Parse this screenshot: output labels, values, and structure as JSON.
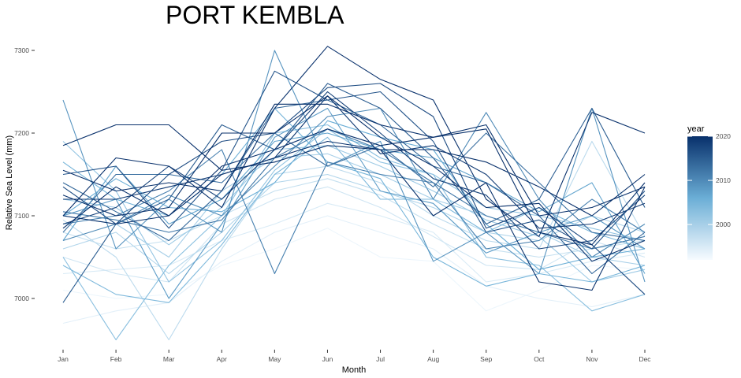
{
  "chart_data": {
    "type": "line",
    "title": "PORT KEMBLA",
    "xlabel": "Month",
    "ylabel": "Relative Sea Level (mm)",
    "categories": [
      "Jan",
      "Feb",
      "Mar",
      "Apr",
      "May",
      "Jun",
      "Jul",
      "Aug",
      "Sep",
      "Oct",
      "Nov",
      "Dec"
    ],
    "y_ticks": [
      "7000",
      "7100",
      "7200",
      "7300"
    ],
    "y_tick_values": [
      7000,
      7100,
      7200,
      7300
    ],
    "ylim": [
      6940,
      7315
    ],
    "grid": false,
    "legend": {
      "title": "year",
      "position": "right",
      "tick_labels": [
        "2000",
        "2010",
        "2020"
      ],
      "tick_values": [
        2000,
        2010,
        2020
      ],
      "range": [
        1992,
        2020
      ],
      "color_low": "#f7fbff",
      "color_high": "#08306b"
    },
    "series": [
      {
        "year": 1993,
        "values": [
          7010,
          7000,
          7005,
          7040,
          7060,
          7085,
          7050,
          7045,
          6985,
          7010,
          7040,
          7035
        ]
      },
      {
        "year": 1994,
        "values": [
          6970,
          6985,
          6995,
          7045,
          7080,
          7100,
          7080,
          7060,
          7015,
          7000,
          6990,
          7005
        ]
      },
      {
        "year": 1995,
        "values": [
          7030,
          7035,
          7040,
          7070,
          7090,
          7115,
          7100,
          7080,
          7020,
          7030,
          7045,
          7055
        ]
      },
      {
        "year": 1996,
        "values": [
          7050,
          7030,
          7020,
          7090,
          7120,
          7135,
          7110,
          7075,
          7040,
          7035,
          7070,
          7050
        ]
      },
      {
        "year": 1997,
        "values": [
          7080,
          7060,
          7070,
          7100,
          7130,
          7145,
          7125,
          7090,
          7060,
          7050,
          7060,
          7070
        ]
      },
      {
        "year": 1998,
        "values": [
          7095,
          7050,
          6950,
          7060,
          7150,
          7160,
          7140,
          7100,
          7070,
          7060,
          7190,
          7075
        ]
      },
      {
        "year": 1999,
        "values": [
          7060,
          7080,
          7030,
          7080,
          7140,
          7150,
          7130,
          7110,
          7080,
          7070,
          7100,
          7080
        ]
      },
      {
        "year": 2000,
        "values": [
          7100,
          7090,
          7050,
          7130,
          7170,
          7175,
          7150,
          7120,
          7100,
          7080,
          7050,
          7040
        ]
      },
      {
        "year": 2001,
        "values": [
          7120,
          7110,
          7065,
          7110,
          7180,
          7185,
          7160,
          7130,
          7095,
          7075,
          7020,
          7035
        ]
      },
      {
        "year": 2002,
        "values": [
          7190,
          7130,
          7020,
          7070,
          7155,
          7205,
          7165,
          7150,
          7110,
          7100,
          7085,
          7070
        ]
      },
      {
        "year": 2003,
        "values": [
          7050,
          6950,
          7040,
          7100,
          7200,
          7210,
          7170,
          7150,
          7050,
          7040,
          6985,
          7005
        ]
      },
      {
        "year": 2004,
        "values": [
          7040,
          7005,
          6995,
          7065,
          7150,
          7195,
          7120,
          7120,
          7080,
          7110,
          7080,
          7060
        ]
      },
      {
        "year": 2005,
        "values": [
          7165,
          7120,
          7100,
          7150,
          7230,
          7165,
          7145,
          7050,
          7015,
          7030,
          7020,
          7040
        ]
      },
      {
        "year": 2006,
        "values": [
          7100,
          7145,
          7110,
          7105,
          7140,
          7215,
          7195,
          7180,
          7090,
          7035,
          7050,
          7060
        ]
      },
      {
        "year": 2007,
        "values": [
          7070,
          7160,
          7090,
          7120,
          7190,
          7200,
          7180,
          7170,
          7140,
          7105,
          7140,
          7030
        ]
      },
      {
        "year": 2008,
        "values": [
          7100,
          7120,
          7000,
          7090,
          7195,
          7230,
          7130,
          7115,
          7055,
          7080,
          7100,
          7060
        ]
      },
      {
        "year": 2009,
        "values": [
          7240,
          7060,
          7120,
          7080,
          7300,
          7160,
          7190,
          7045,
          7080,
          7030,
          7230,
          7020
        ]
      },
      {
        "year": 2010,
        "values": [
          7070,
          7090,
          7125,
          7100,
          7160,
          7220,
          7230,
          7120,
          7225,
          7120,
          7050,
          7090
        ]
      },
      {
        "year": 2011,
        "values": [
          7090,
          7100,
          7130,
          7180,
          7030,
          7165,
          7150,
          7140,
          7060,
          7070,
          7120,
          7080
        ]
      },
      {
        "year": 2012,
        "values": [
          7105,
          7095,
          7080,
          7095,
          7170,
          7205,
          7180,
          7140,
          7100,
          7080,
          7060,
          7075
        ]
      },
      {
        "year": 2013,
        "values": [
          7080,
          7150,
          7150,
          7140,
          7200,
          7160,
          7185,
          7135,
          7200,
          7140,
          7080,
          7070
        ]
      },
      {
        "year": 2014,
        "values": [
          7140,
          7105,
          7070,
          7130,
          7230,
          7240,
          7210,
          7160,
          7140,
          7100,
          7030,
          7080
        ]
      },
      {
        "year": 2015,
        "values": [
          6995,
          7090,
          7120,
          7210,
          7180,
          7260,
          7230,
          7170,
          7090,
          7120,
          7230,
          7110
        ]
      },
      {
        "year": 2016,
        "values": [
          7150,
          7160,
          7085,
          7155,
          7275,
          7240,
          7250,
          7190,
          7080,
          7095,
          7060,
          7130
        ]
      },
      {
        "year": 2017,
        "values": [
          7135,
          7090,
          7150,
          7190,
          7200,
          7255,
          7260,
          7220,
          7085,
          7110,
          7065,
          7005
        ]
      },
      {
        "year": 2018,
        "values": [
          7090,
          7110,
          7160,
          7120,
          7180,
          7250,
          7200,
          7145,
          7125,
          7060,
          7070,
          7125
        ]
      },
      {
        "year": 2019,
        "values": [
          7120,
          7120,
          7135,
          7150,
          7170,
          7245,
          7175,
          7185,
          7150,
          7085,
          7090,
          7115
        ]
      },
      {
        "year": 2020,
        "values": [
          7155,
          7130,
          7140,
          7130,
          7235,
          7235,
          7210,
          7195,
          7210,
          7100,
          7110,
          7135
        ]
      },
      {
        "year": 2020,
        "values": [
          7125,
          7100,
          7110,
          7200,
          7200,
          7245,
          7195,
          7160,
          7110,
          7115,
          7045,
          7070
        ]
      },
      {
        "year": 2020,
        "values": [
          7185,
          7210,
          7210,
          7155,
          7165,
          7185,
          7180,
          7180,
          7165,
          7135,
          7100,
          7150
        ]
      },
      {
        "year": 2020,
        "values": [
          7100,
          7170,
          7160,
          7110,
          7230,
          7305,
          7265,
          7240,
          7120,
          7075,
          7225,
          7200
        ]
      },
      {
        "year": 2020,
        "values": [
          7100,
          7090,
          7100,
          7160,
          7180,
          7205,
          7185,
          7195,
          7205,
          7080,
          7065,
          7140
        ]
      },
      {
        "year": 2020,
        "values": [
          7085,
          7135,
          7100,
          7150,
          7170,
          7190,
          7180,
          7100,
          7140,
          7020,
          7010,
          7135
        ]
      }
    ]
  }
}
